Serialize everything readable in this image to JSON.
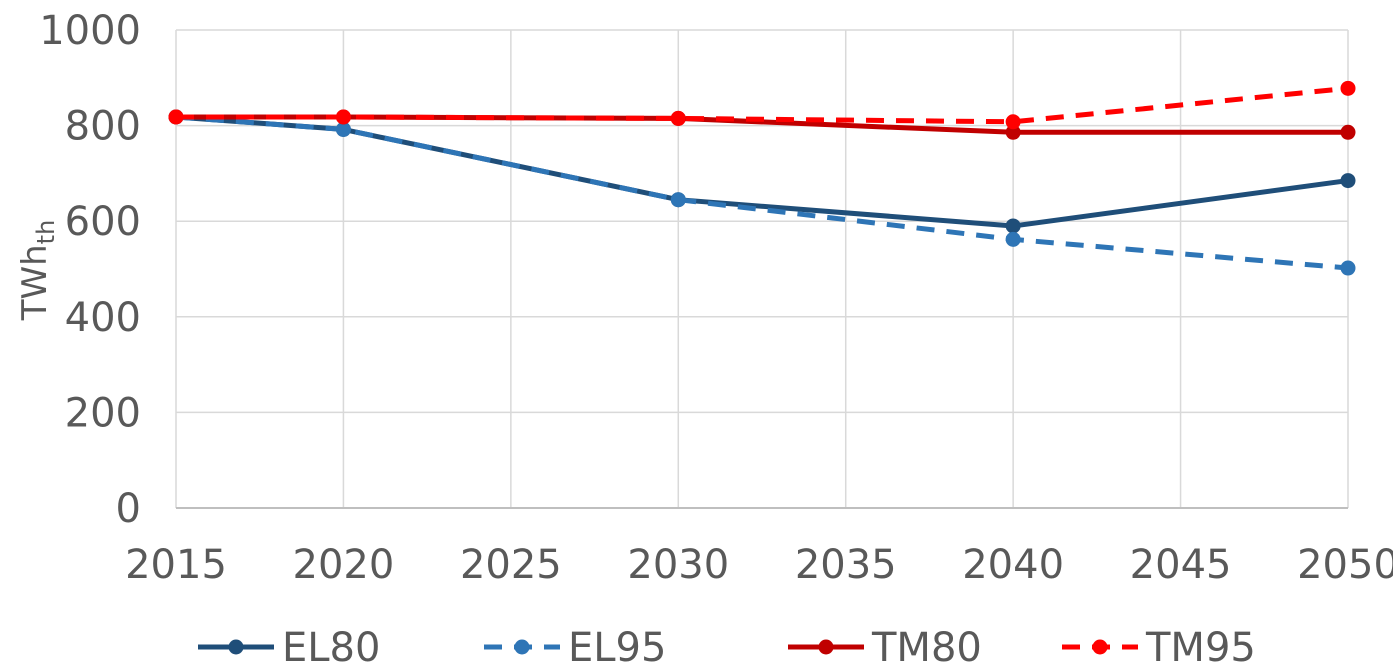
{
  "chart_data": {
    "type": "line",
    "x": [
      2015,
      2020,
      2030,
      2040,
      2050
    ],
    "x_ticks": [
      "2015",
      "2020",
      "2025",
      "2030",
      "2035",
      "2040",
      "2045",
      "2050"
    ],
    "y_ticks": [
      "0",
      "200",
      "400",
      "600",
      "800",
      "1000"
    ],
    "xlim": [
      2015,
      2050
    ],
    "ylim": [
      0,
      1000
    ],
    "xlabel": "",
    "ylabel": "TWh",
    "ylabel_subscript": "th",
    "grid": true,
    "legend_position": "bottom",
    "series": [
      {
        "name": "EL80",
        "values": [
          818,
          792,
          645,
          590,
          685
        ],
        "color": "#1f4e79",
        "dashed": false
      },
      {
        "name": "EL95",
        "values": [
          818,
          792,
          645,
          562,
          502
        ],
        "color": "#2e75b6",
        "dashed": true
      },
      {
        "name": "TM80",
        "values": [
          818,
          818,
          815,
          786,
          786
        ],
        "color": "#c00000",
        "dashed": false
      },
      {
        "name": "TM95",
        "values": [
          818,
          818,
          815,
          808,
          878
        ],
        "color": "#ff0000",
        "dashed": true
      }
    ]
  }
}
